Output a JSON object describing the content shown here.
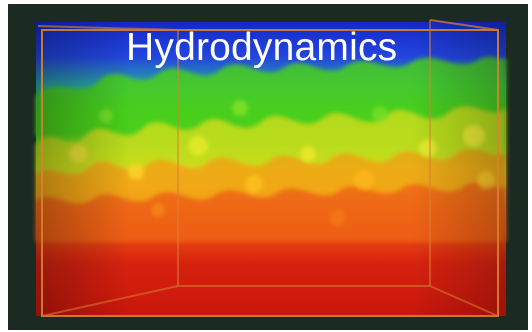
{
  "title": "Hydrodynamics",
  "colors": {
    "background": "#1c2b22",
    "box_edge": "#d9812f",
    "top_layer": "#1f2fd6",
    "mid_layer": "#35c21e",
    "mixing_layer": "#f2d21a",
    "bottom_layer": "#d81a0f",
    "title_text": "#ffffff"
  }
}
